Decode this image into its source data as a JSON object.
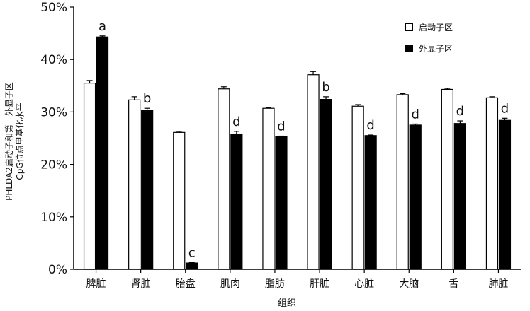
{
  "chart_data": {
    "type": "bar",
    "title": "",
    "xlabel": "组织",
    "ylabel_lines": [
      "PHLDA2启动子和第一外显子区",
      "CpG位点甲基化水平"
    ],
    "ylim": [
      0,
      50
    ],
    "yticks": [
      "0%",
      "10%",
      "20%",
      "30%",
      "40%",
      "50%"
    ],
    "grid": false,
    "legend_position": "top-right",
    "categories": [
      "脾脏",
      "肾脏",
      "胎盘",
      "肌肉",
      "脂肪",
      "肝脏",
      "心脏",
      "大脑",
      "舌",
      "肺脏"
    ],
    "series": [
      {
        "name": "启动子区",
        "color": "#ffffff",
        "values": [
          35.5,
          32.3,
          26.1,
          34.4,
          30.7,
          37.1,
          31.1,
          33.3,
          34.3,
          32.7
        ],
        "errors": [
          0.5,
          0.6,
          0.2,
          0.4,
          0.1,
          0.6,
          0.3,
          0.2,
          0.2,
          0.2
        ]
      },
      {
        "name": "外显子区",
        "color": "#000000",
        "values": [
          44.3,
          30.3,
          1.2,
          25.8,
          25.3,
          32.4,
          25.5,
          27.5,
          27.8,
          28.4
        ],
        "errors": [
          0.2,
          0.4,
          0.1,
          0.5,
          0.1,
          0.5,
          0.1,
          0.2,
          0.5,
          0.4
        ]
      }
    ],
    "annotations": [
      "a",
      "b",
      "c",
      "d",
      "d",
      "b",
      "d",
      "d",
      "d",
      "d"
    ]
  }
}
